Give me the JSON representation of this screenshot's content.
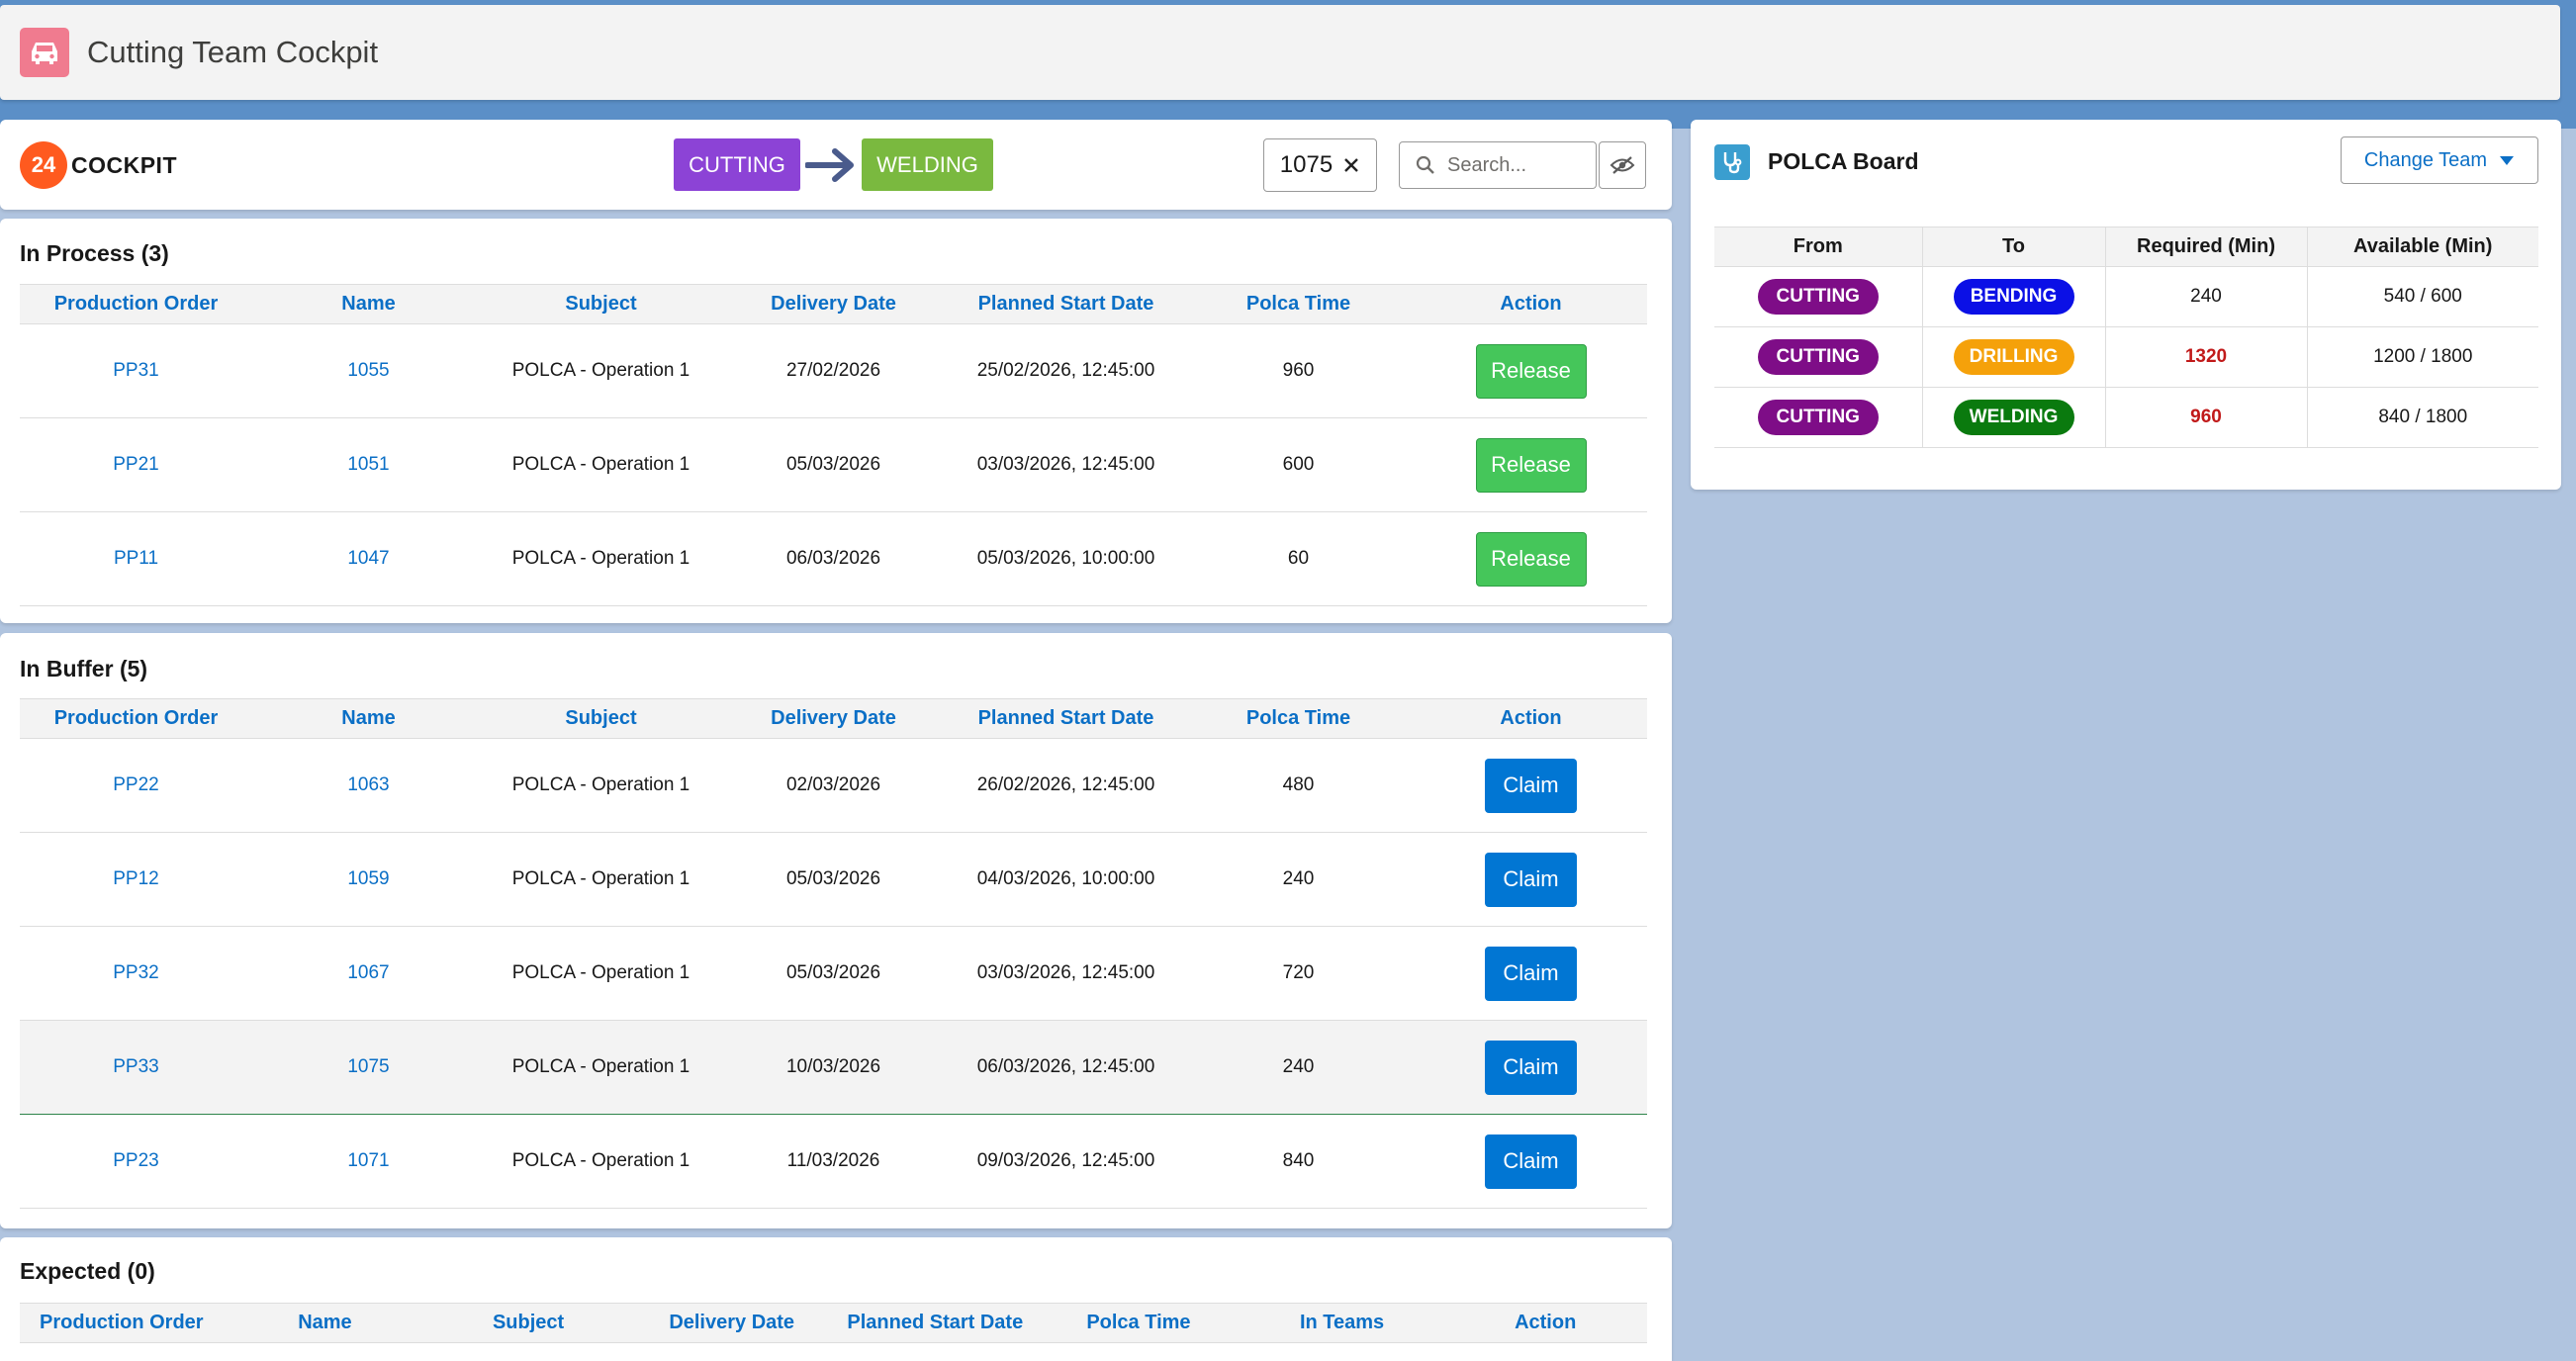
{
  "app": {
    "title": "Cutting Team Cockpit"
  },
  "toolbar": {
    "logo_number": "24",
    "logo_text": "COCKPIT",
    "from_team": "CUTTING",
    "to_team": "WELDING",
    "filter_value": "1075",
    "search_placeholder": "Search..."
  },
  "colors": {
    "cutting": "#8c43d6",
    "welding_tag": "#7ab93f",
    "release": "#45c65a",
    "claim": "#0176d3",
    "link": "#0b6fc6"
  },
  "columns": [
    "Production Order",
    "Name",
    "Subject",
    "Delivery Date",
    "Planned Start Date",
    "Polca Time",
    "Action"
  ],
  "in_process": {
    "title": "In Process (3)",
    "action_label": "Release",
    "rows": [
      {
        "order": "PP31",
        "name": "1055",
        "subject": "POLCA - Operation 1",
        "delivery": "27/02/2026",
        "start": "25/02/2026, 12:45:00",
        "time": "960"
      },
      {
        "order": "PP21",
        "name": "1051",
        "subject": "POLCA - Operation 1",
        "delivery": "05/03/2026",
        "start": "03/03/2026, 12:45:00",
        "time": "600"
      },
      {
        "order": "PP11",
        "name": "1047",
        "subject": "POLCA - Operation 1",
        "delivery": "06/03/2026",
        "start": "05/03/2026, 10:00:00",
        "time": "60"
      }
    ]
  },
  "in_buffer": {
    "title": "In Buffer (5)",
    "action_label": "Claim",
    "rows": [
      {
        "order": "PP22",
        "name": "1063",
        "subject": "POLCA - Operation 1",
        "delivery": "02/03/2026",
        "start": "26/02/2026, 12:45:00",
        "time": "480"
      },
      {
        "order": "PP12",
        "name": "1059",
        "subject": "POLCA - Operation 1",
        "delivery": "05/03/2026",
        "start": "04/03/2026, 10:00:00",
        "time": "240"
      },
      {
        "order": "PP32",
        "name": "1067",
        "subject": "POLCA - Operation 1",
        "delivery": "05/03/2026",
        "start": "03/03/2026, 12:45:00",
        "time": "720"
      },
      {
        "order": "PP33",
        "name": "1075",
        "subject": "POLCA - Operation 1",
        "delivery": "10/03/2026",
        "start": "06/03/2026, 12:45:00",
        "time": "240"
      },
      {
        "order": "PP23",
        "name": "1071",
        "subject": "POLCA - Operation 1",
        "delivery": "11/03/2026",
        "start": "09/03/2026, 12:45:00",
        "time": "840"
      }
    ]
  },
  "expected": {
    "title": "Expected (0)",
    "columns": [
      "Production Order",
      "Name",
      "Subject",
      "Delivery Date",
      "Planned Start Date",
      "Polca Time",
      "In Teams",
      "Action"
    ]
  },
  "polca_board": {
    "title": "POLCA Board",
    "change_team_label": "Change Team",
    "columns": [
      "From",
      "To",
      "Required (Min)",
      "Available (Min)"
    ],
    "rows": [
      {
        "from": "CUTTING",
        "from_color": "#7e0d87",
        "to": "BENDING",
        "to_color": "#0b10e6",
        "required": "240",
        "available": "540 / 600",
        "over": false
      },
      {
        "from": "CUTTING",
        "from_color": "#7e0d87",
        "to": "DRILLING",
        "to_color": "#f5a10a",
        "required": "1320",
        "available": "1200 / 1800",
        "over": true
      },
      {
        "from": "CUTTING",
        "from_color": "#7e0d87",
        "to": "WELDING",
        "to_color": "#0a7a0e",
        "required": "960",
        "available": "840 / 1800",
        "over": true
      }
    ]
  }
}
